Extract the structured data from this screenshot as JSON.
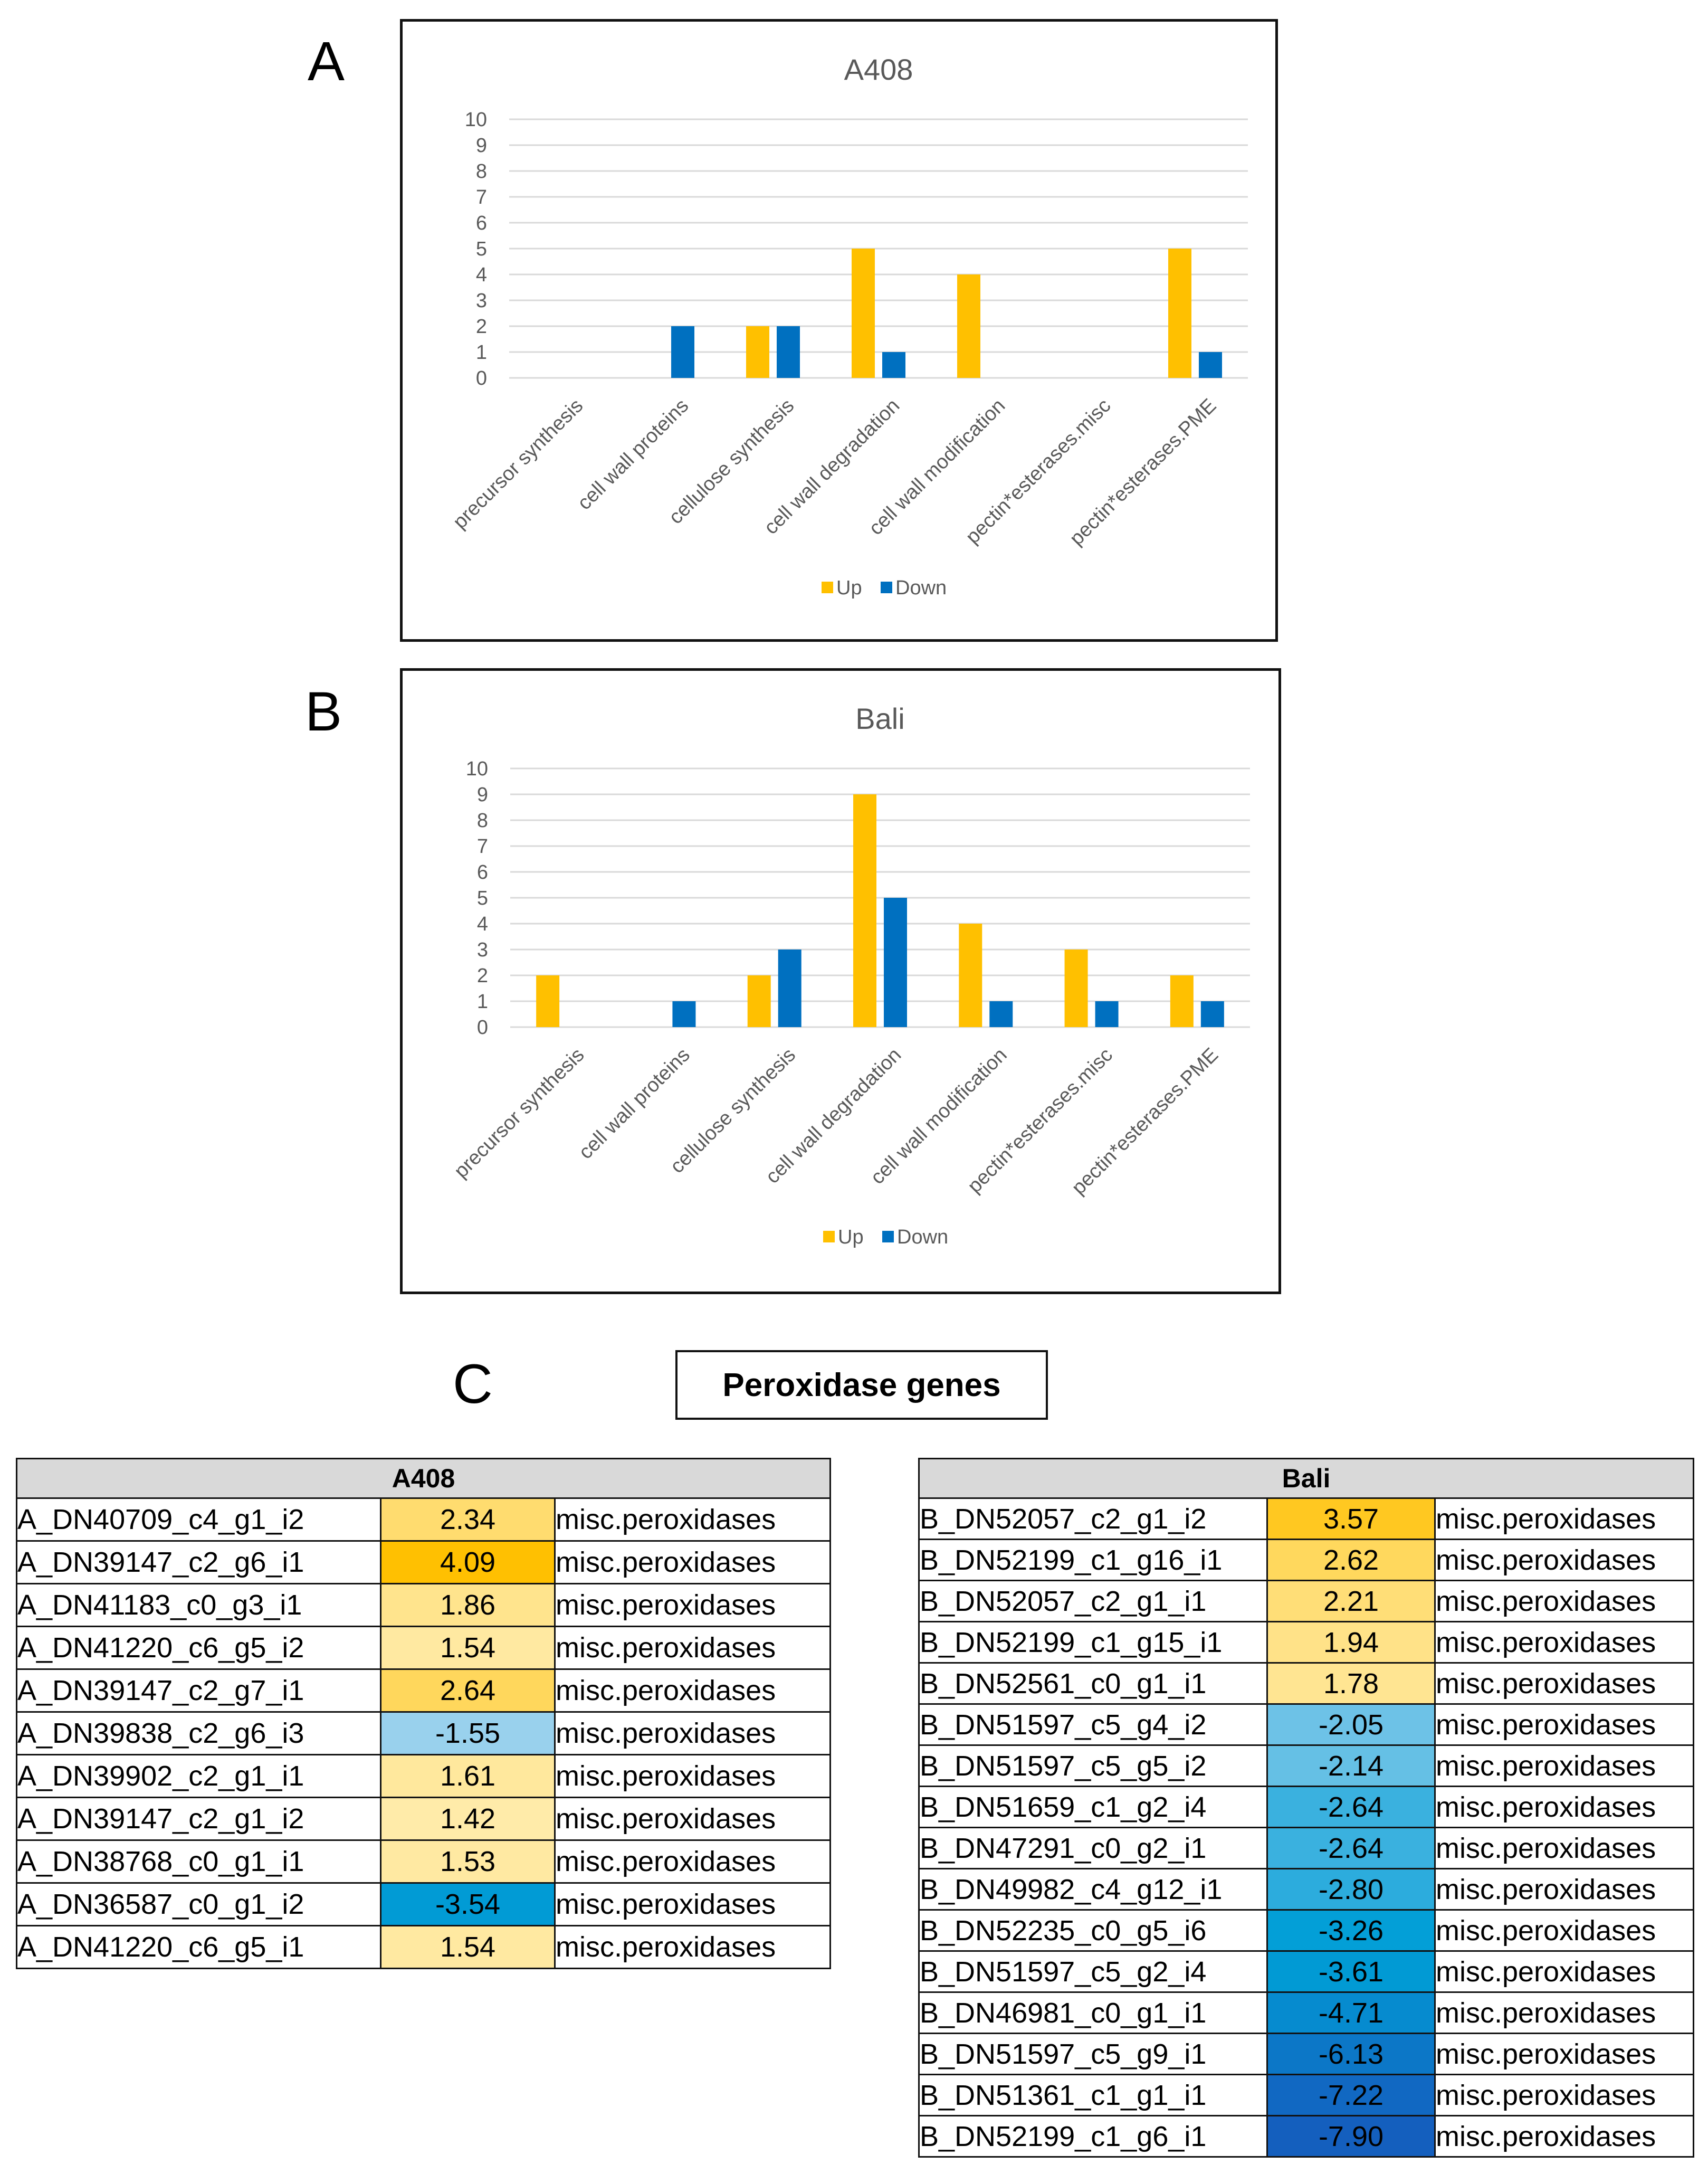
{
  "panels": {
    "a": "A",
    "b": "B",
    "c": "C"
  },
  "chart_data": [
    {
      "type": "bar",
      "title": "A408",
      "categories": [
        "precursor synthesis",
        "cell wall proteins",
        "cellulose synthesis",
        "cell wall degradation",
        "cell wall modification",
        "pectin*esterases.misc",
        "pectin*esterases.PME"
      ],
      "series": [
        {
          "name": "Up",
          "color": "#ffc000",
          "values": [
            0,
            0,
            2,
            5,
            4,
            0,
            5
          ]
        },
        {
          "name": "Down",
          "color": "#0070c0",
          "values": [
            0,
            2,
            2,
            1,
            0,
            0,
            1
          ]
        }
      ],
      "ylim": [
        0,
        10
      ],
      "yticks": [
        "0",
        "1",
        "2",
        "3",
        "4",
        "5",
        "6",
        "7",
        "8",
        "9",
        "10"
      ],
      "xlabel": "",
      "ylabel": "",
      "grid": true,
      "legend": "bottom"
    },
    {
      "type": "bar",
      "title": "Bali",
      "categories": [
        "precursor synthesis",
        "cell wall proteins",
        "cellulose synthesis",
        "cell wall degradation",
        "cell wall modification",
        "pectin*esterases.misc",
        "pectin*esterases.PME"
      ],
      "series": [
        {
          "name": "Up",
          "color": "#ffc000",
          "values": [
            2,
            0,
            2,
            9,
            4,
            3,
            2
          ]
        },
        {
          "name": "Down",
          "color": "#0070c0",
          "values": [
            0,
            1,
            3,
            5,
            1,
            1,
            1
          ]
        }
      ],
      "ylim": [
        0,
        10
      ],
      "yticks": [
        "0",
        "1",
        "2",
        "3",
        "4",
        "5",
        "6",
        "7",
        "8",
        "9",
        "10"
      ],
      "xlabel": "",
      "ylabel": "",
      "grid": true,
      "legend": "bottom"
    }
  ],
  "section_title": "Peroxidase genes",
  "tables": [
    {
      "header": "A408",
      "rows": [
        {
          "gene": "A_DN40709_c4_g1_i2",
          "value": "2.34",
          "annotation": "misc.peroxidases"
        },
        {
          "gene": "A_DN39147_c2_g6_i1",
          "value": "4.09",
          "annotation": "misc.peroxidases"
        },
        {
          "gene": "A_DN41183_c0_g3_i1",
          "value": "1.86",
          "annotation": "misc.peroxidases"
        },
        {
          "gene": "A_DN41220_c6_g5_i2",
          "value": "1.54",
          "annotation": "misc.peroxidases"
        },
        {
          "gene": "A_DN39147_c2_g7_i1",
          "value": "2.64",
          "annotation": "misc.peroxidases"
        },
        {
          "gene": "A_DN39838_c2_g6_i3",
          "value": "-1.55",
          "annotation": "misc.peroxidases"
        },
        {
          "gene": "A_DN39902_c2_g1_i1",
          "value": "1.61",
          "annotation": "misc.peroxidases"
        },
        {
          "gene": "A_DN39147_c2_g1_i2",
          "value": "1.42",
          "annotation": "misc.peroxidases"
        },
        {
          "gene": "A_DN38768_c0_g1_i1",
          "value": "1.53",
          "annotation": "misc.peroxidases"
        },
        {
          "gene": "A_DN36587_c0_g1_i2",
          "value": "-3.54",
          "annotation": "misc.peroxidases"
        },
        {
          "gene": "A_DN41220_c6_g5_i1",
          "value": "1.54",
          "annotation": "misc.peroxidases"
        }
      ]
    },
    {
      "header": "Bali",
      "rows": [
        {
          "gene": "B_DN52057_c2_g1_i2",
          "value": "3.57",
          "annotation": "misc.peroxidases"
        },
        {
          "gene": "B_DN52199_c1_g16_i1",
          "value": "2.62",
          "annotation": "misc.peroxidases"
        },
        {
          "gene": "B_DN52057_c2_g1_i1",
          "value": "2.21",
          "annotation": "misc.peroxidases"
        },
        {
          "gene": "B_DN52199_c1_g15_i1",
          "value": "1.94",
          "annotation": "misc.peroxidases"
        },
        {
          "gene": "B_DN52561_c0_g1_i1",
          "value": "1.78",
          "annotation": "misc.peroxidases"
        },
        {
          "gene": "B_DN51597_c5_g4_i2",
          "value": "-2.05",
          "annotation": "misc.peroxidases"
        },
        {
          "gene": "B_DN51597_c5_g5_i2",
          "value": "-2.14",
          "annotation": "misc.peroxidases"
        },
        {
          "gene": "B_DN51659_c1_g2_i4",
          "value": "-2.64",
          "annotation": "misc.peroxidases"
        },
        {
          "gene": "B_DN47291_c0_g2_i1",
          "value": "-2.64",
          "annotation": "misc.peroxidases"
        },
        {
          "gene": "B_DN49982_c4_g12_i1",
          "value": "-2.80",
          "annotation": "misc.peroxidases"
        },
        {
          "gene": "B_DN52235_c0_g5_i6",
          "value": "-3.26",
          "annotation": "misc.peroxidases"
        },
        {
          "gene": "B_DN51597_c5_g2_i4",
          "value": "-3.61",
          "annotation": "misc.peroxidases"
        },
        {
          "gene": "B_DN46981_c0_g1_i1",
          "value": "-4.71",
          "annotation": "misc.peroxidases"
        },
        {
          "gene": "B_DN51597_c5_g9_i1",
          "value": "-6.13",
          "annotation": "misc.peroxidases"
        },
        {
          "gene": "B_DN51361_c1_g1_i1",
          "value": "-7.22",
          "annotation": "misc.peroxidases"
        },
        {
          "gene": "B_DN52199_c1_g6_i1",
          "value": "-7.90",
          "annotation": "misc.peroxidases"
        }
      ]
    }
  ]
}
